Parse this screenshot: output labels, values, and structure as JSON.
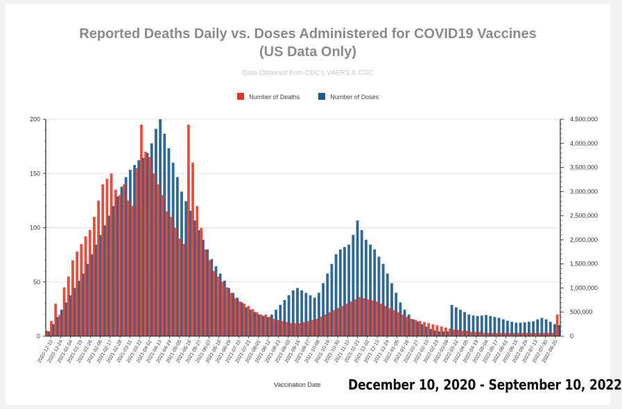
{
  "title_line1": "Reported Deaths Daily vs. Doses Administered for COVID19 Vaccines",
  "title_line2": "(US Data Only)",
  "subtitle": "Data Obtained from CDC's VAERS & CDC",
  "legend": {
    "deaths_label": "Number of Deaths",
    "doses_label": "Number of Doses"
  },
  "xlabel": "Vaccination Date",
  "date_range": "December 10, 2020 - September 10, 2022",
  "colors": {
    "deaths": "#e0301e",
    "doses": "#1f5c8c",
    "grid": "#e3e3e3"
  },
  "chart_data": {
    "type": "bar",
    "title": "Reported Deaths Daily vs. Doses Administered for COVID19 Vaccines (US Data Only)",
    "subtitle": "Data Obtained from CDC's VAERS & CDC",
    "xlabel": "Vaccination Date",
    "y_left": {
      "ylim": [
        0,
        200
      ],
      "ticks": [
        "0",
        "50",
        "100",
        "150",
        "200"
      ]
    },
    "y_right": {
      "ylim": [
        0,
        4500000
      ],
      "ticks": [
        "0",
        "500,000",
        "1,000,000",
        "1,500,000",
        "2,000,000",
        "2,500,000",
        "3,000,000",
        "3,500,000",
        "4,000,000",
        "4,500,000"
      ]
    },
    "x_tick_labels": [
      "2020-12-10",
      "2020-12-24",
      "2021-01-04",
      "2021-01-15",
      "2021-01-26",
      "2021-02-06",
      "2021-02-17",
      "2021-02-28",
      "2021-03-11",
      "2021-03-22",
      "2021-04-02",
      "2021-04-13",
      "2021-04-24",
      "2021-05-05",
      "2021-05-16",
      "2021-05-27",
      "2021-06-07",
      "2021-06-18",
      "2021-06-29",
      "2021-07-10",
      "2021-07-21",
      "2021-08-01",
      "2021-08-12",
      "2021-08-23",
      "2021-09-03",
      "2021-09-16",
      "2021-09-27",
      "2021-10-08",
      "2021-10-19",
      "2021-10-30",
      "2021-11-10",
      "2021-11-21",
      "2021-12-02",
      "2021-12-13",
      "2021-12-24",
      "2022-01-05",
      "2022-01-16",
      "2022-01-27",
      "2022-02-10",
      "2022-02-23",
      "2022-03-09",
      "2022-03-22",
      "2022-04-05",
      "2022-04-19",
      "2022-05-04",
      "2022-05-17",
      "2022-06-01",
      "2022-06-15",
      "2022-06-29",
      "2022-07-13",
      "2022-07-30",
      "2022-08-20"
    ],
    "legend_position": "top-center",
    "grid": true,
    "series": [
      {
        "name": "Number of Deaths",
        "axis": "left",
        "values": [
          5,
          14,
          30,
          20,
          45,
          55,
          70,
          78,
          85,
          92,
          98,
          110,
          125,
          140,
          145,
          150,
          135,
          130,
          140,
          125,
          120,
          155,
          195,
          170,
          165,
          150,
          140,
          130,
          115,
          110,
          100,
          90,
          85,
          195,
          160,
          120,
          100,
          80,
          70,
          60,
          55,
          50,
          45,
          40,
          35,
          32,
          30,
          28,
          25,
          22,
          20,
          20,
          18,
          16,
          15,
          14,
          13,
          12,
          12,
          12,
          13,
          14,
          15,
          16,
          18,
          20,
          22,
          24,
          26,
          28,
          30,
          32,
          34,
          36,
          35,
          34,
          33,
          32,
          30,
          28,
          26,
          24,
          22,
          20,
          18,
          16,
          15,
          14,
          13,
          12,
          11,
          10,
          9,
          8,
          7,
          6,
          6,
          5,
          5,
          4,
          4,
          4,
          3,
          3,
          3,
          3,
          3,
          3,
          3,
          3,
          3,
          3,
          3,
          3,
          3,
          3,
          3,
          3,
          3,
          20
        ]
      },
      {
        "name": "Number of Doses",
        "axis": "right",
        "values": [
          100000,
          250000,
          400000,
          550000,
          700000,
          850000,
          1000000,
          1150000,
          1300000,
          1500000,
          1700000,
          1900000,
          2100000,
          2300000,
          2500000,
          2700000,
          2900000,
          3100000,
          3300000,
          3450000,
          3550000,
          3650000,
          3700000,
          3800000,
          4000000,
          4300000,
          4500000,
          4200000,
          3900000,
          3600000,
          3300000,
          3000000,
          2800000,
          2600000,
          2400000,
          2200000,
          2000000,
          1800000,
          1600000,
          1450000,
          1300000,
          1150000,
          1000000,
          900000,
          800000,
          700000,
          600000,
          550000,
          500000,
          450000,
          420000,
          400000,
          450000,
          550000,
          650000,
          750000,
          850000,
          950000,
          1000000,
          950000,
          900000,
          850000,
          800000,
          900000,
          1100000,
          1300000,
          1500000,
          1700000,
          1800000,
          1850000,
          1900000,
          2100000,
          2400000,
          2200000,
          2000000,
          1900000,
          1800000,
          1650000,
          1500000,
          1300000,
          1100000,
          900000,
          700000,
          550000,
          450000,
          350000,
          300000,
          250000,
          200000,
          150000,
          120000,
          100000,
          100000,
          100000,
          650000,
          600000,
          550000,
          500000,
          450000,
          430000,
          420000,
          430000,
          440000,
          420000,
          400000,
          380000,
          350000,
          320000,
          300000,
          280000,
          280000,
          290000,
          300000,
          310000,
          350000,
          380000,
          350000,
          300000,
          250000,
          230000
        ]
      }
    ]
  }
}
